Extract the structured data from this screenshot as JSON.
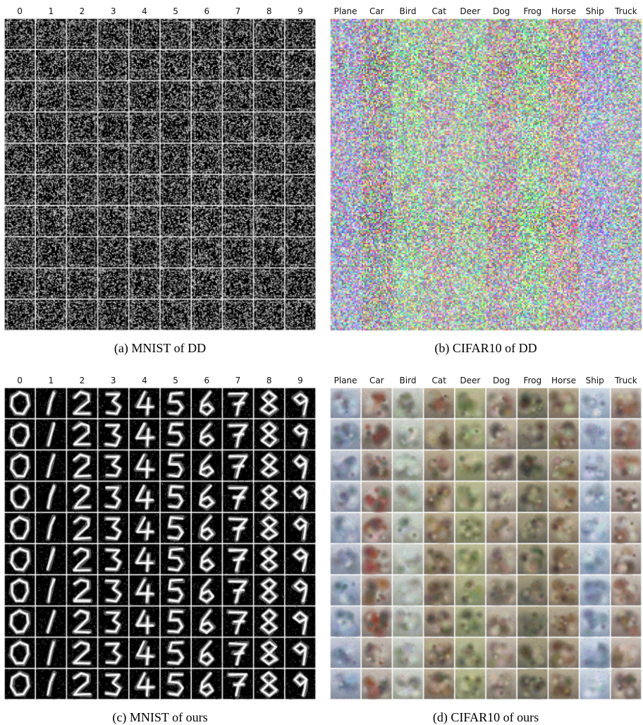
{
  "figure": {
    "panels": [
      {
        "id": "a",
        "kind": "mnist",
        "style": "noise",
        "column_labels": [
          "0",
          "1",
          "2",
          "3",
          "4",
          "5",
          "6",
          "7",
          "8",
          "9"
        ],
        "caption": "(a)  MNIST of DD"
      },
      {
        "id": "b",
        "kind": "cifar",
        "style": "noise",
        "column_labels": [
          "Plane",
          "Car",
          "Bird",
          "Cat",
          "Deer",
          "Dog",
          "Frog",
          "Horse",
          "Ship",
          "Truck"
        ],
        "caption": "(b)  CIFAR10 of DD"
      },
      {
        "id": "c",
        "kind": "mnist",
        "style": "digits",
        "column_labels": [
          "0",
          "1",
          "2",
          "3",
          "4",
          "5",
          "6",
          "7",
          "8",
          "9"
        ],
        "caption": "(c)  MNIST of ours"
      },
      {
        "id": "d",
        "kind": "cifar",
        "style": "blur",
        "column_labels": [
          "Plane",
          "Car",
          "Bird",
          "Cat",
          "Deer",
          "Dog",
          "Frog",
          "Horse",
          "Ship",
          "Truck"
        ],
        "caption": "(d)  CIFAR10 of ours"
      }
    ],
    "colors": {
      "cell_separator": "#ffffff",
      "mnist_background": "#000000",
      "mnist_ink": "#ffffff"
    }
  }
}
